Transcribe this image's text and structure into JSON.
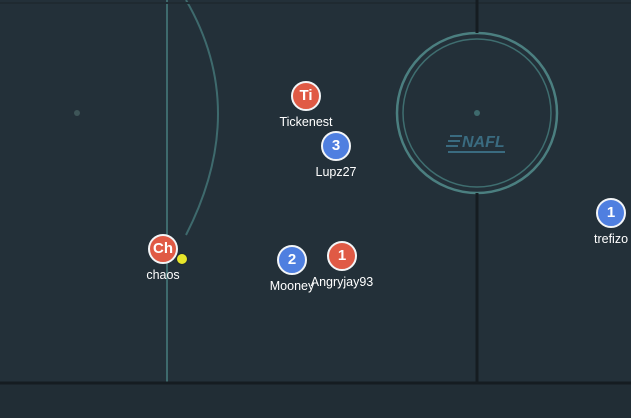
{
  "logo": {
    "text": "NAFL"
  },
  "players": [
    {
      "id": "p-ti",
      "team": "red",
      "label": "Ti",
      "name": "Tickenest"
    },
    {
      "id": "p-3",
      "team": "blue",
      "label": "3",
      "name": "Lupz27"
    },
    {
      "id": "p-ch",
      "team": "red",
      "label": "Ch",
      "name": "chaos"
    },
    {
      "id": "p-2",
      "team": "blue",
      "label": "2",
      "name": "Mooney"
    },
    {
      "id": "p-1r",
      "team": "red",
      "label": "1",
      "name": "Angryjay93"
    },
    {
      "id": "p-1b",
      "team": "blue",
      "label": "1",
      "name": "trefizo"
    }
  ],
  "colors": {
    "red_team": "#e05a45",
    "blue_team": "#4f7fe0",
    "ball": "#e7e62a",
    "field": "#233039",
    "lines": "#3e6a6d"
  }
}
